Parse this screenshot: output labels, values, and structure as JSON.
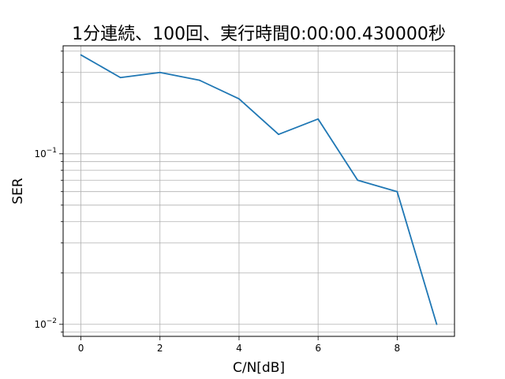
{
  "chart_data": {
    "type": "line",
    "title": "1分連続、100回、実行時間0:00:00.430000秒",
    "xlabel": "C/N[dB]",
    "ylabel": "SER",
    "yscale": "log",
    "grid": true,
    "xlim": [
      -0.45,
      9.45
    ],
    "ylim": [
      0.0085,
      0.43
    ],
    "x_ticks": [
      0,
      2,
      4,
      6,
      8
    ],
    "y_major_ticks": [
      {
        "value": 0.1,
        "base": "10",
        "exp": "−1"
      },
      {
        "value": 0.01,
        "base": "10",
        "exp": "−2"
      }
    ],
    "series": [
      {
        "color": "#1f77b4",
        "x": [
          0,
          1,
          2,
          3,
          4,
          5,
          6,
          7,
          8,
          9
        ],
        "y": [
          0.38,
          0.28,
          0.3,
          0.27,
          0.21,
          0.13,
          0.16,
          0.07,
          0.06,
          0.01
        ]
      }
    ]
  }
}
